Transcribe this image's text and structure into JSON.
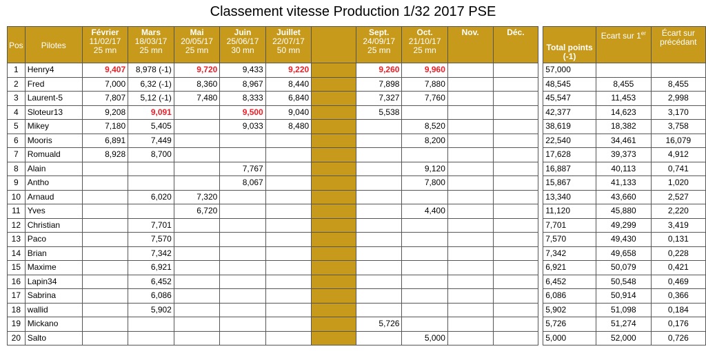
{
  "title": "Classement vitesse Production 1/32 2017 PSE",
  "headers": {
    "pos": "Pos",
    "pilotes": "Pilotes",
    "rounds": [
      {
        "month": "Février",
        "date": "11/02/17",
        "dur": "25 mn"
      },
      {
        "month": "Mars",
        "date": "18/03/17",
        "dur": "25 mn"
      },
      {
        "month": "Mai",
        "date": "20/05/17",
        "dur": "25 mn"
      },
      {
        "month": "Juin",
        "date": "25/06/17",
        "dur": "30 mn"
      },
      {
        "month": "Juillet",
        "date": "22/07/17",
        "dur": "50 mn"
      },
      {
        "month": "",
        "date": "",
        "dur": ""
      },
      {
        "month": "Sept.",
        "date": "24/09/17",
        "dur": "25 mn"
      },
      {
        "month": "Oct.",
        "date": "21/10/17",
        "dur": "25 mn"
      },
      {
        "month": "Nov.",
        "date": "",
        "dur": ""
      },
      {
        "month": "Déc.",
        "date": "",
        "dur": ""
      }
    ],
    "total_line1": "Total points",
    "total_line2": "(-1)",
    "ecart_premier": "Ecart sur 1",
    "ecart_premier_sup": "er",
    "ecart_precedant": "Écart sur précédant"
  },
  "rows": [
    {
      "pos": "1",
      "name": "Henry4",
      "vals": [
        "9,407",
        "8,978 (-1)",
        "9,720",
        "9,433",
        "9,220",
        "",
        "9,260",
        "9,960",
        "",
        ""
      ],
      "best": [
        0,
        2,
        4,
        6,
        7
      ],
      "total": "57,000",
      "ecart1": "",
      "ecartp": ""
    },
    {
      "pos": "2",
      "name": "Fred",
      "vals": [
        "7,000",
        "6,32 (-1)",
        "8,360",
        "8,967",
        "8,440",
        "",
        "7,898",
        "7,880",
        "",
        ""
      ],
      "best": [],
      "total": "48,545",
      "ecart1": "8,455",
      "ecartp": "8,455"
    },
    {
      "pos": "3",
      "name": "Laurent-5",
      "vals": [
        "7,807",
        "5,12 (-1)",
        "7,480",
        "8,333",
        "6,840",
        "",
        "7,327",
        "7,760",
        "",
        ""
      ],
      "best": [],
      "total": "45,547",
      "ecart1": "11,453",
      "ecartp": "2,998"
    },
    {
      "pos": "4",
      "name": "Sloteur13",
      "vals": [
        "9,208",
        "9,091",
        "",
        "9,500",
        "9,040",
        "",
        "5,538",
        "",
        "",
        ""
      ],
      "best": [
        1,
        3
      ],
      "total": "42,377",
      "ecart1": "14,623",
      "ecartp": "3,170"
    },
    {
      "pos": "5",
      "name": "Mikey",
      "vals": [
        "7,180",
        "5,405",
        "",
        "9,033",
        "8,480",
        "",
        "",
        "8,520",
        "",
        ""
      ],
      "best": [],
      "total": "38,619",
      "ecart1": "18,382",
      "ecartp": "3,758"
    },
    {
      "pos": "6",
      "name": "Mooris",
      "vals": [
        "6,891",
        "7,449",
        "",
        "",
        "",
        "",
        "",
        "8,200",
        "",
        ""
      ],
      "best": [],
      "total": "22,540",
      "ecart1": "34,461",
      "ecartp": "16,079"
    },
    {
      "pos": "7",
      "name": "Romuald",
      "vals": [
        "8,928",
        "8,700",
        "",
        "",
        "",
        "",
        "",
        "",
        "",
        ""
      ],
      "best": [],
      "total": "17,628",
      "ecart1": "39,373",
      "ecartp": "4,912"
    },
    {
      "pos": "8",
      "name": "Alain",
      "vals": [
        "",
        "",
        "",
        "7,767",
        "",
        "",
        "",
        "9,120",
        "",
        ""
      ],
      "best": [],
      "total": "16,887",
      "ecart1": "40,113",
      "ecartp": "0,741"
    },
    {
      "pos": "9",
      "name": "Antho",
      "vals": [
        "",
        "",
        "",
        "8,067",
        "",
        "",
        "",
        "7,800",
        "",
        ""
      ],
      "best": [],
      "total": "15,867",
      "ecart1": "41,133",
      "ecartp": "1,020"
    },
    {
      "pos": "10",
      "name": "Arnaud",
      "vals": [
        "",
        "6,020",
        "7,320",
        "",
        "",
        "",
        "",
        "",
        "",
        ""
      ],
      "best": [],
      "total": "13,340",
      "ecart1": "43,660",
      "ecartp": "2,527"
    },
    {
      "pos": "11",
      "name": "Yves",
      "vals": [
        "",
        "",
        "6,720",
        "",
        "",
        "",
        "",
        "4,400",
        "",
        ""
      ],
      "best": [],
      "total": "11,120",
      "ecart1": "45,880",
      "ecartp": "2,220"
    },
    {
      "pos": "12",
      "name": "Christian",
      "vals": [
        "",
        "7,701",
        "",
        "",
        "",
        "",
        "",
        "",
        "",
        ""
      ],
      "best": [],
      "total": "7,701",
      "ecart1": "49,299",
      "ecartp": "3,419"
    },
    {
      "pos": "13",
      "name": "Paco",
      "vals": [
        "",
        "7,570",
        "",
        "",
        "",
        "",
        "",
        "",
        "",
        ""
      ],
      "best": [],
      "total": "7,570",
      "ecart1": "49,430",
      "ecartp": "0,131"
    },
    {
      "pos": "14",
      "name": "Brian",
      "vals": [
        "",
        "7,342",
        "",
        "",
        "",
        "",
        "",
        "",
        "",
        ""
      ],
      "best": [],
      "total": "7,342",
      "ecart1": "49,658",
      "ecartp": "0,228"
    },
    {
      "pos": "15",
      "name": "Maxime",
      "vals": [
        "",
        "6,921",
        "",
        "",
        "",
        "",
        "",
        "",
        "",
        ""
      ],
      "best": [],
      "total": "6,921",
      "ecart1": "50,079",
      "ecartp": "0,421"
    },
    {
      "pos": "16",
      "name": "Lapin34",
      "vals": [
        "",
        "6,452",
        "",
        "",
        "",
        "",
        "",
        "",
        "",
        ""
      ],
      "best": [],
      "total": "6,452",
      "ecart1": "50,548",
      "ecartp": "0,469"
    },
    {
      "pos": "17",
      "name": "Sabrina",
      "vals": [
        "",
        "6,086",
        "",
        "",
        "",
        "",
        "",
        "",
        "",
        ""
      ],
      "best": [],
      "total": "6,086",
      "ecart1": "50,914",
      "ecartp": "0,366"
    },
    {
      "pos": "18",
      "name": "wallid",
      "vals": [
        "",
        "5,902",
        "",
        "",
        "",
        "",
        "",
        "",
        "",
        ""
      ],
      "best": [],
      "total": "5,902",
      "ecart1": "51,098",
      "ecartp": "0,184"
    },
    {
      "pos": "19",
      "name": "Mickano",
      "vals": [
        "",
        "",
        "",
        "",
        "",
        "",
        "5,726",
        "",
        "",
        ""
      ],
      "best": [],
      "total": "5,726",
      "ecart1": "51,274",
      "ecartp": "0,176"
    },
    {
      "pos": "20",
      "name": "Salto",
      "vals": [
        "",
        "",
        "",
        "",
        "",
        "",
        "",
        "5,000",
        "",
        ""
      ],
      "best": [],
      "total": "5,000",
      "ecart1": "52,000",
      "ecartp": "0,726"
    }
  ],
  "colors": {
    "header_bg": "#c89a1b",
    "best_text": "#ee1c25"
  }
}
